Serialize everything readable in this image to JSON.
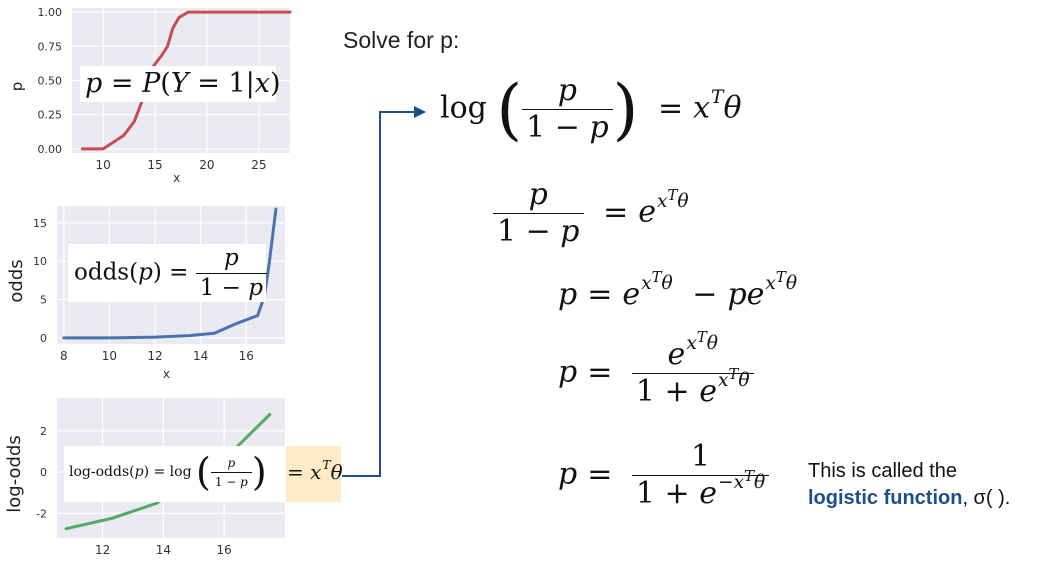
{
  "chart_data": [
    {
      "type": "line",
      "xlabel": "x",
      "ylabel": "p",
      "xlim": [
        7,
        28
      ],
      "ylim": [
        -0.03,
        1.03
      ],
      "x_ticks": [
        "10",
        "15",
        "20",
        "25"
      ],
      "y_ticks": [
        "0.00",
        "0.25",
        "0.50",
        "0.75",
        "1.00"
      ],
      "series": [
        {
          "color": "#c44e52",
          "x": [
            8,
            10,
            11,
            12,
            13,
            14,
            14.8,
            15.6,
            16.2,
            16.7,
            17.3,
            18.2,
            28
          ],
          "y": [
            0,
            0,
            0.05,
            0.1,
            0.2,
            0.4,
            0.6,
            0.68,
            0.75,
            0.88,
            0.96,
            1.0,
            1.0
          ]
        }
      ],
      "grid": true,
      "annotation": "p = P(Y = 1|x)"
    },
    {
      "type": "line",
      "xlabel": "x",
      "ylabel": "odds",
      "xlim": [
        7.7,
        17.7
      ],
      "ylim": [
        -0.8,
        17.2
      ],
      "x_ticks": [
        "8",
        "10",
        "12",
        "14",
        "16"
      ],
      "y_ticks": [
        "0",
        "5",
        "10",
        "15"
      ],
      "series": [
        {
          "color": "#4c72b0",
          "x": [
            8,
            10,
            12,
            13.5,
            14.6,
            15.6,
            16.5,
            16.8,
            17.0,
            17.3
          ],
          "y": [
            0,
            0,
            0.1,
            0.3,
            0.6,
            1.9,
            2.9,
            5.5,
            9.5,
            16.8
          ]
        }
      ],
      "grid": true,
      "annotation": "odds(p) = p / (1 − p)"
    },
    {
      "type": "line",
      "xlabel": "",
      "ylabel": "log-odds",
      "xlim": [
        10.5,
        18
      ],
      "ylim": [
        -3.2,
        3.6
      ],
      "x_ticks": [
        "12",
        "14",
        "16"
      ],
      "y_ticks": [
        "-2",
        "0",
        "2"
      ],
      "series": [
        {
          "color": "#55a868",
          "x": [
            10.8,
            12.3,
            13.8,
            15.2,
            16.4,
            17.5
          ],
          "y": [
            -2.75,
            -2.25,
            -1.5,
            0.4,
            1.2,
            2.8
          ]
        }
      ],
      "grid": true,
      "annotation": "log-odds(p) = log( p / (1 − p) ) = xᵀθ"
    }
  ],
  "solve_title": "Solve for p:",
  "note": {
    "line1": "This is called the",
    "bold": "logistic function",
    "suffix": ", σ(  )."
  },
  "colors": {
    "arrow": "#1d4f8a",
    "highlight": "#fdebc8"
  }
}
